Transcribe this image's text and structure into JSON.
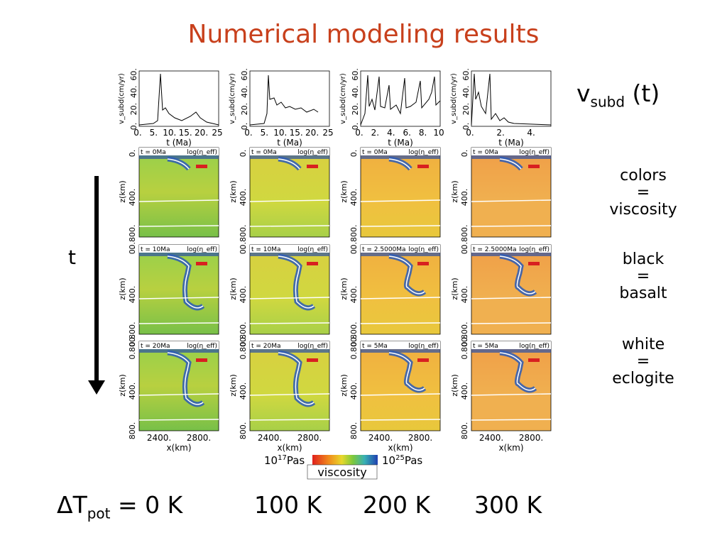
{
  "title": "Numerical modeling results",
  "vsubd_label": {
    "v": "v",
    "sub": "subd",
    "rest": " (t)"
  },
  "legend": [
    {
      "l1": "colors",
      "l2": "=",
      "l3": "viscosity"
    },
    {
      "l1": "black",
      "l2": "=",
      "l3": "basalt"
    },
    {
      "l1": "white",
      "l2": "=",
      "l3": "eclogite"
    }
  ],
  "time_arrow_label": "t",
  "plot_ylabel": "v_subd(cm/yr)",
  "plot_yticks": [
    "0.",
    "20.",
    "40.",
    "60."
  ],
  "plot_xlabel": "t (Ma)",
  "plot_xticks": [
    [
      "0.",
      "5.",
      "10.",
      "15.",
      "20.",
      "25"
    ],
    [
      "0.",
      "5.",
      "10.",
      "15.",
      "20.",
      "25"
    ],
    [
      "0.",
      "2.",
      "4.",
      "6.",
      "8.",
      "10"
    ],
    [
      "0.",
      "2.",
      "4."
    ]
  ],
  "panel_zlabel": "z(km)",
  "panel_zticks": [
    "0.",
    "400.",
    "0.800."
  ],
  "panel_zticks_last": [
    "0.800.",
    "400.",
    "800."
  ],
  "panel_log": "log(η_eff)",
  "panel_times": [
    [
      "t = 0Ma",
      "t = 10Ma",
      "t = 20Ma"
    ],
    [
      "t = 0Ma",
      "t = 10Ma",
      "t = 20Ma"
    ],
    [
      "t = 0Ma",
      "t = 2.5000Ma",
      "t = 5Ma"
    ],
    [
      "t = 0Ma",
      "t = 2.5000Ma",
      "t = 5Ma"
    ]
  ],
  "panel_xticks": [
    "2400.",
    "2800."
  ],
  "panel_xlabel": "x(km)",
  "colorbar": {
    "min": "10",
    "min_exp": "17",
    "min_unit": "Pas",
    "max": "10",
    "max_exp": "25",
    "max_unit": "Pas",
    "label": "viscosity"
  },
  "deltaT": {
    "symbol": "ΔT",
    "sub": "pot",
    "rest": " = 0 K"
  },
  "temperatures": [
    "100 K",
    "200 K",
    "300 K"
  ],
  "colors": {
    "title": "#c8401c",
    "arrow": "#000000"
  }
}
